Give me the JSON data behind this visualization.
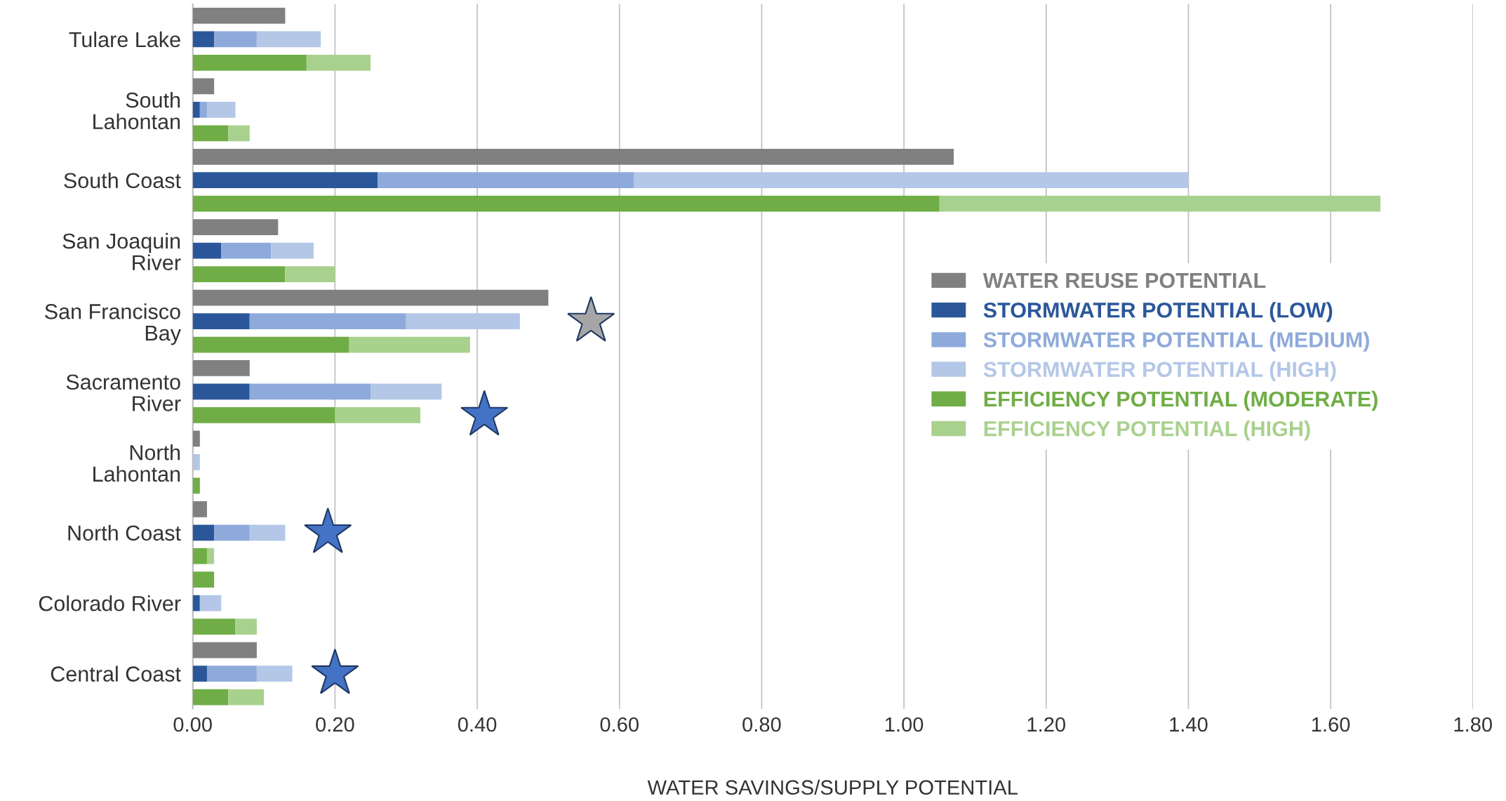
{
  "chart_data": {
    "type": "bar",
    "orientation": "horizontal",
    "stacked": true,
    "xlabel": "WATER SAVINGS/SUPPLY POTENTIAL",
    "categories": [
      null,
      "Tulare Lake",
      null,
      null,
      "South\nLahontan",
      null,
      null,
      "South Coast",
      null,
      null,
      "San Joaquin\nRiver",
      null,
      null,
      "San Francisco\nBay",
      null,
      null,
      "Sacramento\nRiver",
      null,
      null,
      "North\nLahontan",
      null,
      null,
      "North Coast",
      null,
      null,
      "Colorado River",
      null,
      null,
      "Central Coast",
      null
    ],
    "series": [
      {
        "name": "WATER REUSE POTENTIAL",
        "color": "#808080",
        "colors": [
          "#808080",
          null,
          null,
          "#808080",
          null,
          null,
          "#808080",
          null,
          null,
          "#808080",
          null,
          null,
          "#808080",
          null,
          null,
          "#808080",
          null,
          null,
          "#808080",
          null,
          null,
          "#808080",
          null,
          null,
          "#70ad47",
          null,
          null,
          "#808080",
          null,
          null
        ],
        "values": [
          0.13,
          null,
          null,
          0.03,
          null,
          null,
          1.07,
          null,
          null,
          0.12,
          null,
          null,
          0.5,
          null,
          null,
          0.08,
          null,
          null,
          0.01,
          null,
          null,
          0.02,
          null,
          null,
          0.03,
          null,
          null,
          0.09,
          null,
          null
        ]
      },
      {
        "name": "STORMWATER POTENTIAL (LOW)",
        "color": "#2b579a",
        "values": [
          null,
          0.03,
          null,
          null,
          0.01,
          null,
          null,
          0.26,
          null,
          null,
          0.04,
          null,
          null,
          0.08,
          null,
          null,
          0.08,
          null,
          null,
          0.0,
          null,
          null,
          0.03,
          null,
          null,
          0.01,
          null,
          null,
          0.02,
          null
        ]
      },
      {
        "name": "STORMWATER POTENTIAL (MEDIUM)",
        "color": "#8eaadb",
        "values": [
          null,
          0.06,
          null,
          null,
          0.01,
          null,
          null,
          0.36,
          null,
          null,
          0.07,
          null,
          null,
          0.22,
          null,
          null,
          0.17,
          null,
          null,
          0.0,
          null,
          null,
          0.05,
          null,
          null,
          0.0,
          null,
          null,
          0.07,
          null
        ]
      },
      {
        "name": "STORMWATER POTENTIAL (HIGH)",
        "color": "#b4c7e7",
        "values": [
          null,
          0.09,
          null,
          null,
          0.04,
          null,
          null,
          0.78,
          null,
          null,
          0.06,
          null,
          null,
          0.16,
          null,
          null,
          0.1,
          null,
          null,
          0.01,
          null,
          null,
          0.05,
          null,
          null,
          0.03,
          null,
          null,
          0.05,
          null
        ]
      },
      {
        "name": "EFFICIENCY POTENTIAL (MODERATE)",
        "color": "#70ad47",
        "values": [
          null,
          null,
          0.16,
          null,
          null,
          0.05,
          null,
          null,
          1.05,
          null,
          null,
          0.13,
          null,
          null,
          0.22,
          null,
          null,
          0.2,
          null,
          null,
          0.01,
          null,
          null,
          0.02,
          null,
          null,
          0.06,
          null,
          null,
          0.05
        ]
      },
      {
        "name": "EFFICIENCY POTENTIAL (HIGH)",
        "color": "#a9d18e",
        "values": [
          null,
          null,
          0.09,
          null,
          null,
          0.03,
          null,
          null,
          0.62,
          null,
          null,
          0.07,
          null,
          null,
          0.17,
          null,
          null,
          0.12,
          null,
          null,
          0.0,
          null,
          null,
          0.01,
          null,
          null,
          0.03,
          null,
          null,
          0.05
        ]
      }
    ],
    "xlim": [
      0,
      1.8
    ],
    "xticks": [
      {
        "value": 0,
        "label": "0.00"
      },
      {
        "value": 0.2,
        "label": "0.20"
      },
      {
        "value": 0.4,
        "label": "0.40"
      },
      {
        "value": 0.6,
        "label": "0.60"
      },
      {
        "value": 0.8,
        "label": "0.80"
      },
      {
        "value": 1.0,
        "label": "1.00"
      },
      {
        "value": 1.2,
        "label": "1.20"
      },
      {
        "value": 1.4,
        "label": "1.40"
      },
      {
        "value": 1.6,
        "label": "1.60"
      },
      {
        "value": 1.8,
        "label": "1.80"
      }
    ],
    "grid": "x",
    "legend": "center right"
  }
}
